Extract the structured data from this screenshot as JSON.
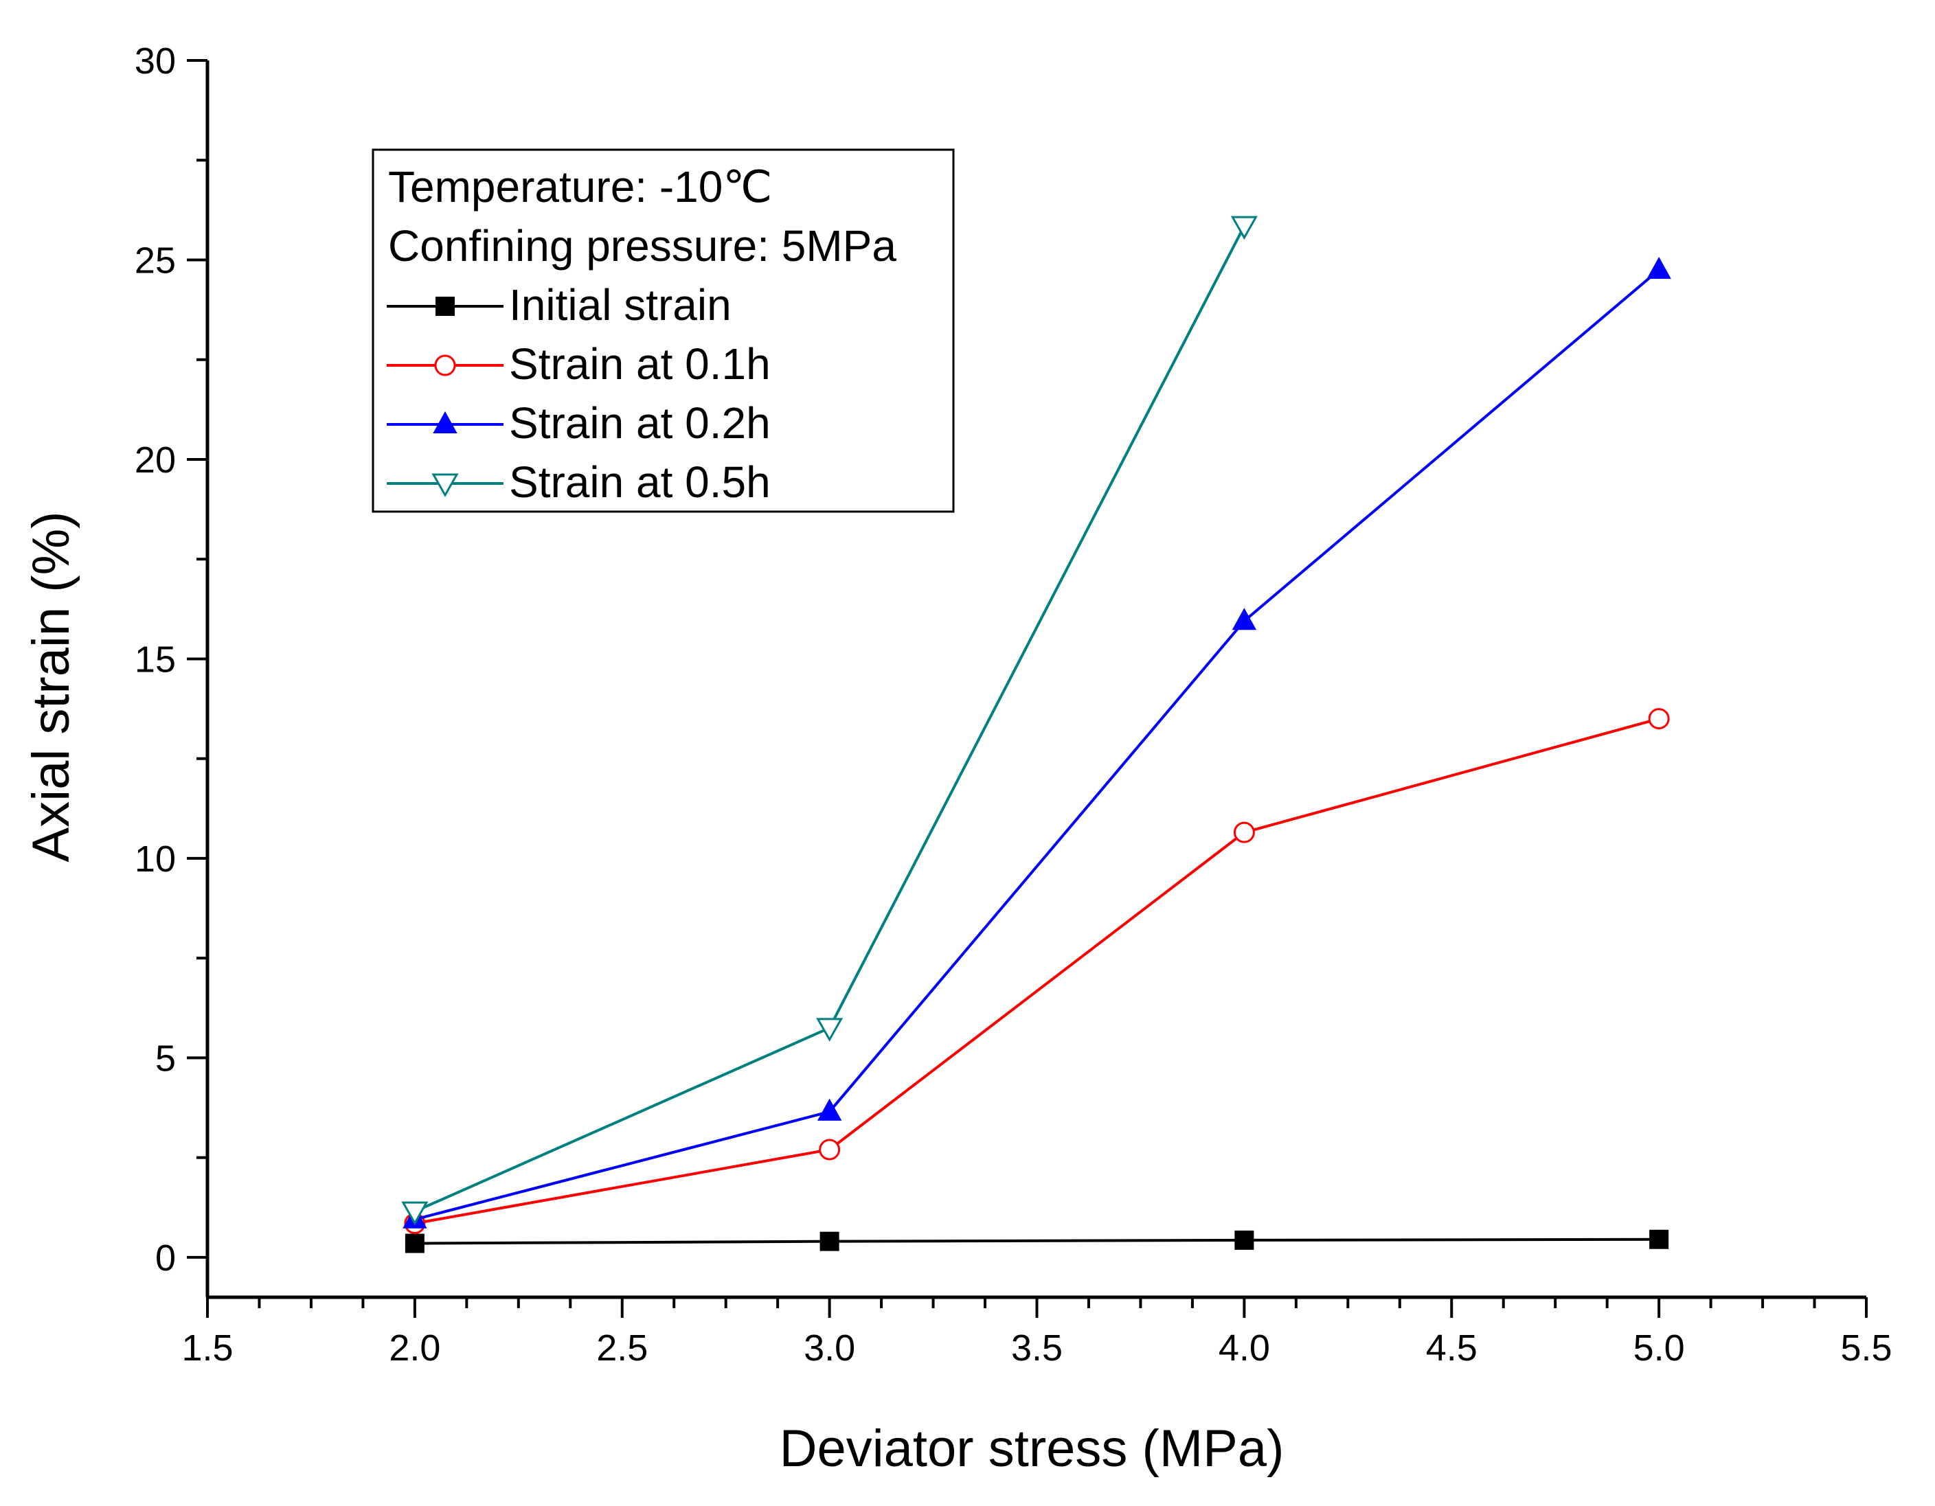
{
  "chart_data": {
    "type": "line",
    "xlabel": "Deviator stress (MPa)",
    "ylabel": "Axial strain (%)",
    "xlim": [
      1.5,
      5.5
    ],
    "ylim": [
      -1,
      30
    ],
    "xticks": [
      1.5,
      2.0,
      2.5,
      3.0,
      3.5,
      4.0,
      4.5,
      5.0,
      5.5
    ],
    "xtick_labels": [
      "1.5",
      "2.0",
      "2.5",
      "3.0",
      "3.5",
      "4.0",
      "4.5",
      "5.0",
      "5.5"
    ],
    "yticks": [
      0,
      5,
      10,
      15,
      20,
      25,
      30
    ],
    "ytick_labels": [
      "0",
      "5",
      "10",
      "15",
      "20",
      "25",
      "30"
    ],
    "grid": false,
    "legend_position": "top-left",
    "legend_title_lines": [
      "Temperature: -10℃",
      "Confining pressure: 5MPa"
    ],
    "series": [
      {
        "name": "Initial strain",
        "color": "#000000",
        "marker": "filled-square",
        "x": [
          2.0,
          3.0,
          4.0,
          5.0
        ],
        "y": [
          0.35,
          0.4,
          0.43,
          0.45
        ]
      },
      {
        "name": "Strain at 0.1h",
        "color": "#ff0000",
        "marker": "open-circle",
        "x": [
          2.0,
          3.0,
          4.0,
          5.0
        ],
        "y": [
          0.85,
          2.7,
          10.65,
          13.5
        ]
      },
      {
        "name": "Strain at 0.2h",
        "color": "#0000ff",
        "marker": "filled-triangle-up",
        "x": [
          2.0,
          3.0,
          4.0,
          5.0
        ],
        "y": [
          0.95,
          3.65,
          15.95,
          24.75
        ]
      },
      {
        "name": "Strain at 0.5h",
        "color": "#008080",
        "marker": "open-triangle-down",
        "x": [
          2.0,
          3.0,
          4.0
        ],
        "y": [
          1.15,
          5.75,
          25.85
        ]
      }
    ]
  }
}
